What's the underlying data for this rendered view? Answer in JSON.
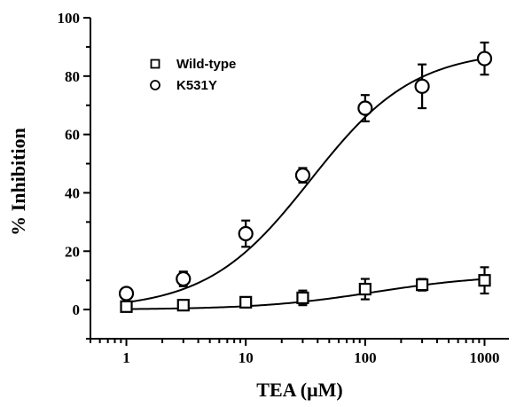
{
  "chart_data": {
    "type": "scatter",
    "title": "",
    "xlabel": "TEA (μM)",
    "ylabel": "% Inhibition",
    "x_scale": "log",
    "xlim": [
      0.5,
      1600
    ],
    "ylim": [
      -10,
      100
    ],
    "x_ticks": [
      1,
      10,
      100,
      1000
    ],
    "x_tick_labels": [
      "1",
      "10",
      "100",
      "1000"
    ],
    "y_ticks": [
      0,
      20,
      40,
      60,
      80,
      100
    ],
    "y_tick_labels": [
      "0",
      "20",
      "40",
      "60",
      "80",
      "100"
    ],
    "grid": false,
    "legend_position": "upper-left",
    "series": [
      {
        "name": "Wild-type",
        "marker": "square",
        "x": [
          1,
          3,
          10,
          30,
          100,
          300,
          1000
        ],
        "y": [
          1,
          1.5,
          2.5,
          4,
          7,
          8.5,
          10
        ],
        "err": [
          0.5,
          0.5,
          0.8,
          2.5,
          3.5,
          2,
          4.5
        ],
        "fit": {
          "top": 12,
          "ec50": 120,
          "hill": 0.9
        }
      },
      {
        "name": "K531Y",
        "marker": "circle",
        "x": [
          1,
          3,
          10,
          30,
          100,
          300,
          1000
        ],
        "y": [
          5.5,
          10.5,
          26,
          46,
          69,
          76.5,
          86
        ],
        "err": [
          1,
          2.5,
          4.5,
          2.5,
          4.5,
          7.5,
          5.5
        ],
        "fit": {
          "top": 89,
          "ec50": 35,
          "hill": 1.0
        }
      }
    ]
  }
}
